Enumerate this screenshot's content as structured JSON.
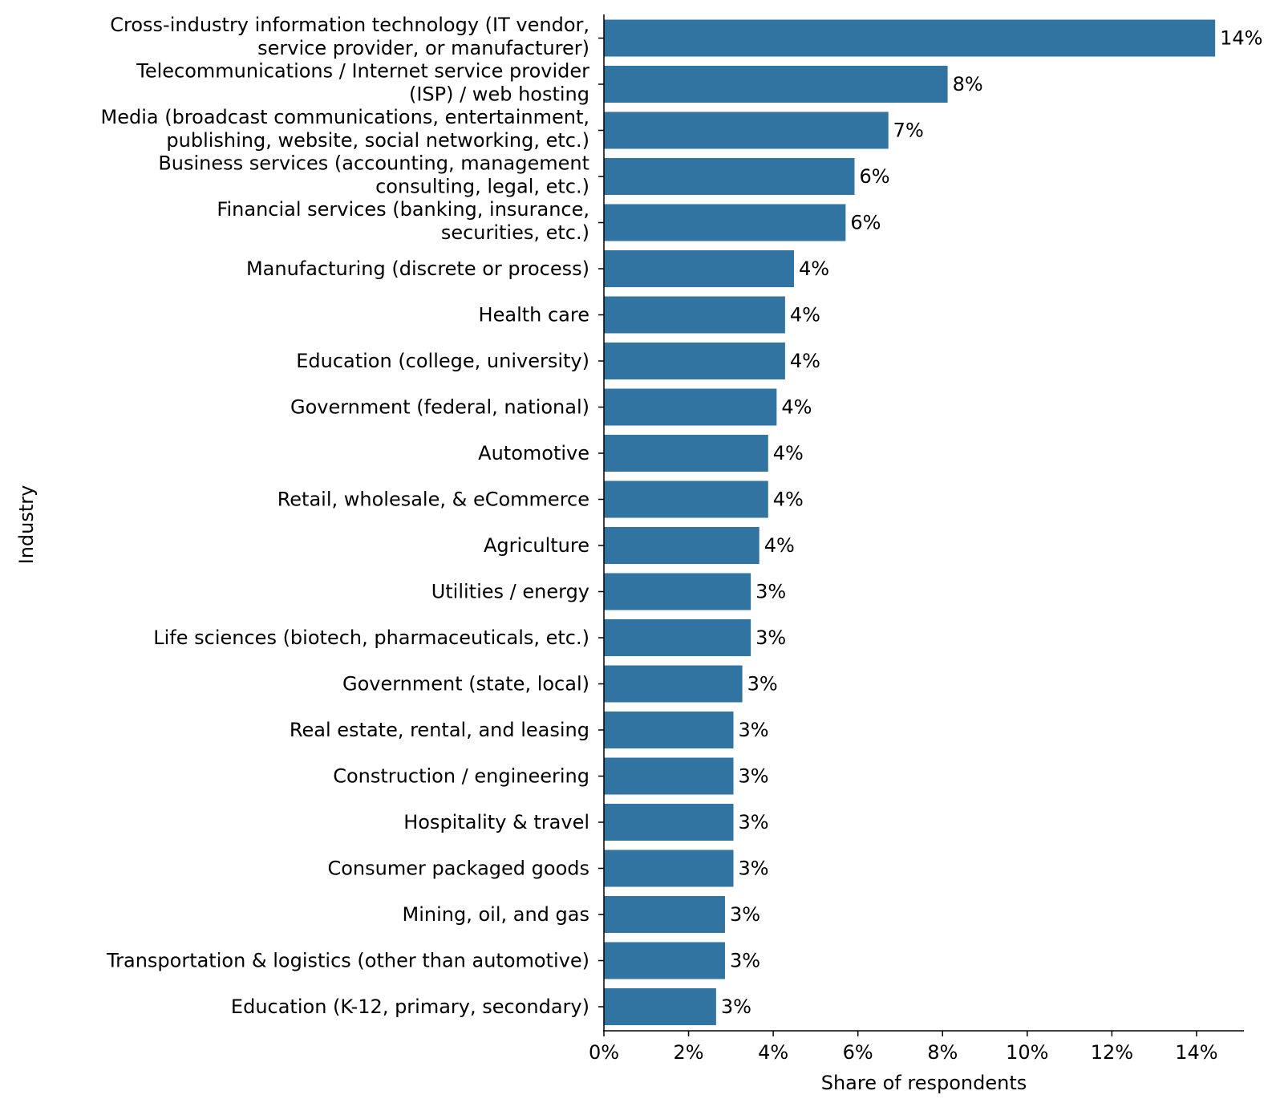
{
  "chart_data": {
    "type": "bar",
    "orientation": "horizontal",
    "title": "",
    "xlabel": "Share of respondents",
    "ylabel": "Industry",
    "xlim": [
      0,
      15.2
    ],
    "x_ticks": [
      0,
      2,
      4,
      6,
      8,
      10,
      12,
      14
    ],
    "x_tick_labels": [
      "0%",
      "2%",
      "4%",
      "6%",
      "8%",
      "10%",
      "12%",
      "14%"
    ],
    "bar_color": "#3274a1",
    "categories": [
      [
        "Cross-industry information technology (IT vendor,",
        "service provider, or manufacturer)"
      ],
      [
        "Telecommunications / Internet service provider",
        "(ISP) / web hosting"
      ],
      [
        "Media (broadcast communications, entertainment,",
        "publishing, website, social networking, etc.)"
      ],
      [
        "Business services (accounting, management",
        "consulting, legal, etc.)"
      ],
      [
        "Financial services (banking, insurance,",
        "securities, etc.)"
      ],
      [
        "Manufacturing (discrete or process)"
      ],
      [
        "Health care"
      ],
      [
        "Education (college, university)"
      ],
      [
        "Government (federal, national)"
      ],
      [
        "Automotive"
      ],
      [
        "Retail, wholesale, & eCommerce"
      ],
      [
        "Agriculture"
      ],
      [
        "Utilities / energy"
      ],
      [
        "Life sciences (biotech, pharmaceuticals, etc.)"
      ],
      [
        "Government (state, local)"
      ],
      [
        "Real estate, rental, and leasing"
      ],
      [
        "Construction / engineering"
      ],
      [
        "Hospitality & travel"
      ],
      [
        "Consumer packaged goods"
      ],
      [
        "Mining, oil, and gas"
      ],
      [
        "Transportation & logistics (other than automotive)"
      ],
      [
        "Education (K-12, primary, secondary)"
      ]
    ],
    "values": [
      14.44,
      8.12,
      6.72,
      5.92,
      5.71,
      4.49,
      4.28,
      4.28,
      4.08,
      3.88,
      3.88,
      3.67,
      3.47,
      3.47,
      3.27,
      3.06,
      3.06,
      3.06,
      3.06,
      2.86,
      2.86,
      2.65
    ],
    "data_labels": [
      "14%",
      "8%",
      "7%",
      "6%",
      "6%",
      "4%",
      "4%",
      "4%",
      "4%",
      "4%",
      "4%",
      "4%",
      "3%",
      "3%",
      "3%",
      "3%",
      "3%",
      "3%",
      "3%",
      "3%",
      "3%",
      "3%"
    ]
  }
}
